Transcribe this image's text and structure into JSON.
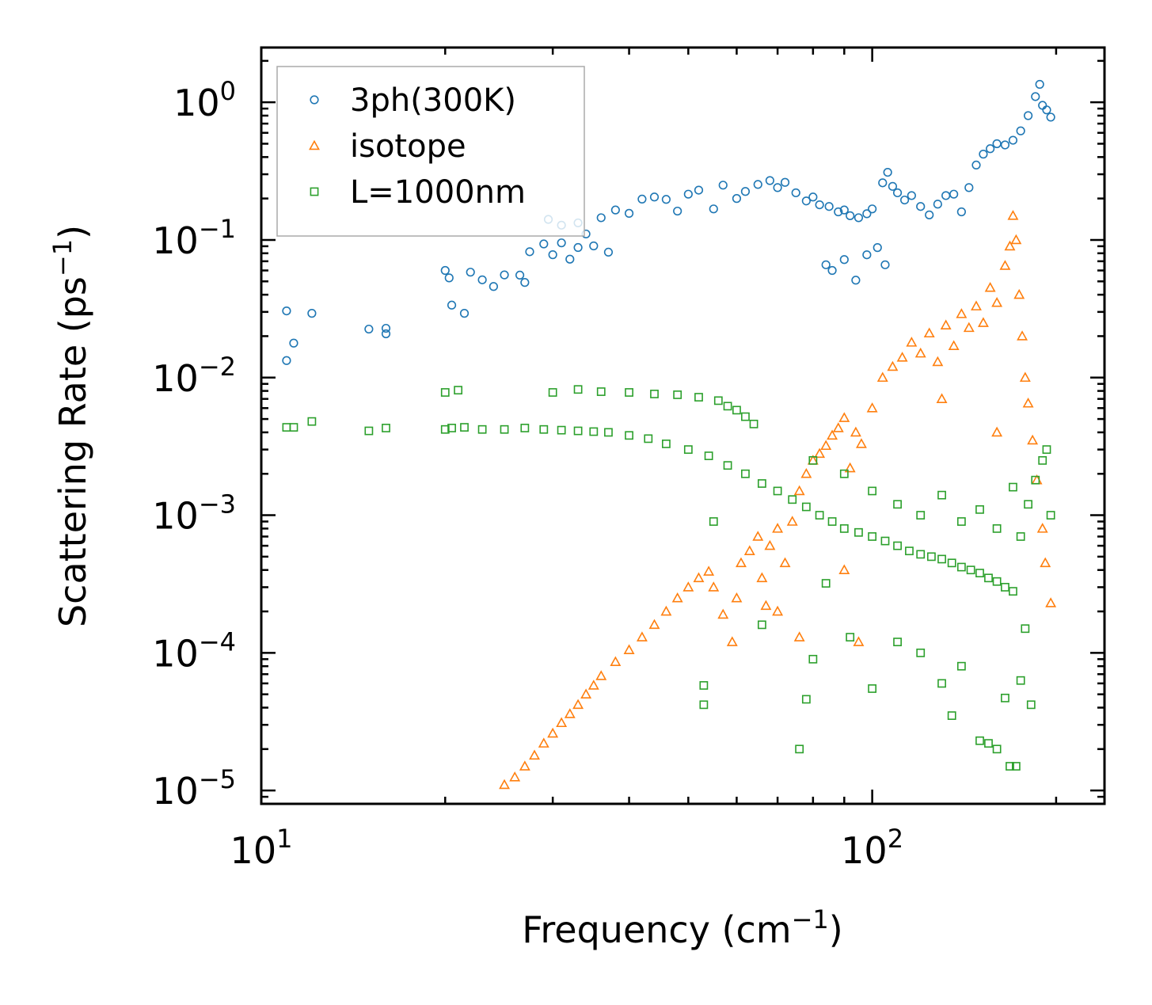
{
  "chart_data": {
    "type": "scatter",
    "xscale": "log",
    "yscale": "log",
    "xlim": [
      10,
      240
    ],
    "ylim": [
      8e-06,
      2.5
    ],
    "xlabel": "Frequency (cm",
    "xlabel_exp": "−1",
    "xlabel_end": ")",
    "ylabel": "Scattering Rate (ps",
    "ylabel_exp": "−1",
    "ylabel_end": ")",
    "xticks": [
      {
        "value": 10,
        "base": "10",
        "exp": "1"
      },
      {
        "value": 100,
        "base": "10",
        "exp": "2"
      }
    ],
    "yticks": [
      {
        "value": 1,
        "base": "10",
        "exp": "0"
      },
      {
        "value": 0.1,
        "base": "10",
        "exp": "−1"
      },
      {
        "value": 0.01,
        "base": "10",
        "exp": "−2"
      },
      {
        "value": 0.001,
        "base": "10",
        "exp": "−3"
      },
      {
        "value": 0.0001,
        "base": "10",
        "exp": "−4"
      },
      {
        "value": 1e-05,
        "base": "10",
        "exp": "−5"
      }
    ],
    "legend_position": "top-left",
    "series": [
      {
        "name": "3ph(300K)",
        "marker": "circle",
        "color": "#1f77b4",
        "points": [
          [
            11.0,
            0.0305
          ],
          [
            11.0,
            0.0133
          ],
          [
            11.3,
            0.0178
          ],
          [
            12.1,
            0.0293
          ],
          [
            15.0,
            0.0225
          ],
          [
            16.0,
            0.0208
          ],
          [
            16.0,
            0.0228
          ],
          [
            20.0,
            0.06
          ],
          [
            20.3,
            0.053
          ],
          [
            20.5,
            0.0336
          ],
          [
            21.5,
            0.0293
          ],
          [
            22.0,
            0.0583
          ],
          [
            23.0,
            0.0513
          ],
          [
            24.0,
            0.0459
          ],
          [
            25.0,
            0.0557
          ],
          [
            26.5,
            0.0555
          ],
          [
            27.0,
            0.0491
          ],
          [
            27.5,
            0.0821
          ],
          [
            29.0,
            0.0935
          ],
          [
            30.0,
            0.0781
          ],
          [
            31.0,
            0.0952
          ],
          [
            32.0,
            0.0725
          ],
          [
            33.0,
            0.0881
          ],
          [
            34.0,
            0.1105
          ],
          [
            35.0,
            0.0905
          ],
          [
            37.0,
            0.0815
          ],
          [
            29.5,
            0.141
          ],
          [
            31.0,
            0.128
          ],
          [
            33.0,
            0.133
          ],
          [
            36.0,
            0.145
          ],
          [
            38.0,
            0.165
          ],
          [
            40.0,
            0.156
          ],
          [
            42.0,
            0.198
          ],
          [
            44.0,
            0.205
          ],
          [
            46.0,
            0.197
          ],
          [
            48.0,
            0.162
          ],
          [
            50.0,
            0.215
          ],
          [
            52.0,
            0.23
          ],
          [
            55.0,
            0.168
          ],
          [
            57.0,
            0.25
          ],
          [
            60.0,
            0.2
          ],
          [
            62.0,
            0.225
          ],
          [
            65.0,
            0.253
          ],
          [
            68.0,
            0.27
          ],
          [
            70.0,
            0.24
          ],
          [
            72.0,
            0.262
          ],
          [
            75.0,
            0.22
          ],
          [
            78.0,
            0.192
          ],
          [
            80.0,
            0.205
          ],
          [
            82.0,
            0.18
          ],
          [
            85.0,
            0.175
          ],
          [
            88.0,
            0.16
          ],
          [
            90.0,
            0.165
          ],
          [
            92.0,
            0.15
          ],
          [
            95.0,
            0.145
          ],
          [
            98.0,
            0.155
          ],
          [
            100.0,
            0.168
          ],
          [
            104.0,
            0.26
          ],
          [
            106.0,
            0.31
          ],
          [
            108.0,
            0.245
          ],
          [
            110.0,
            0.22
          ],
          [
            113.0,
            0.195
          ],
          [
            116.0,
            0.21
          ],
          [
            120.0,
            0.175
          ],
          [
            124.0,
            0.152
          ],
          [
            128.0,
            0.182
          ],
          [
            132.0,
            0.21
          ],
          [
            136.0,
            0.215
          ],
          [
            140.0,
            0.16
          ],
          [
            144.0,
            0.24
          ],
          [
            148.0,
            0.35
          ],
          [
            152.0,
            0.42
          ],
          [
            156.0,
            0.46
          ],
          [
            160.0,
            0.5
          ],
          [
            165.0,
            0.49
          ],
          [
            170.0,
            0.53
          ],
          [
            175.0,
            0.62
          ],
          [
            180.0,
            0.8
          ],
          [
            185.0,
            1.1
          ],
          [
            188.0,
            1.35
          ],
          [
            190.0,
            0.95
          ],
          [
            193.0,
            0.88
          ],
          [
            196.0,
            0.78
          ],
          [
            84.0,
            0.066
          ],
          [
            86.0,
            0.06
          ],
          [
            90.0,
            0.072
          ],
          [
            94.0,
            0.051
          ],
          [
            98.0,
            0.078
          ],
          [
            102.0,
            0.088
          ],
          [
            105.0,
            0.066
          ]
        ]
      },
      {
        "name": "isotope",
        "marker": "triangle",
        "color": "#ff7f0e",
        "points": [
          [
            25.0,
            1.1e-05
          ],
          [
            26.0,
            1.25e-05
          ],
          [
            27.0,
            1.5e-05
          ],
          [
            28.0,
            1.8e-05
          ],
          [
            29.0,
            2.2e-05
          ],
          [
            30.0,
            2.6e-05
          ],
          [
            31.0,
            3.1e-05
          ],
          [
            32.0,
            3.6e-05
          ],
          [
            33.0,
            4.2e-05
          ],
          [
            34.0,
            5e-05
          ],
          [
            35.0,
            5.8e-05
          ],
          [
            36.0,
            6.8e-05
          ],
          [
            38.0,
            8.6e-05
          ],
          [
            40.0,
            0.000105
          ],
          [
            42.0,
            0.00013
          ],
          [
            44.0,
            0.00016
          ],
          [
            46.0,
            0.0002
          ],
          [
            48.0,
            0.00025
          ],
          [
            50.0,
            0.0003
          ],
          [
            52.0,
            0.00035
          ],
          [
            54.0,
            0.00039
          ],
          [
            55.0,
            0.0003
          ],
          [
            57.0,
            0.00019
          ],
          [
            59.0,
            0.00012
          ],
          [
            60.0,
            0.00025
          ],
          [
            61.0,
            0.00045
          ],
          [
            63.0,
            0.00055
          ],
          [
            65.0,
            0.0007
          ],
          [
            66.0,
            0.00035
          ],
          [
            67.0,
            0.00022
          ],
          [
            68.0,
            0.0006
          ],
          [
            70.0,
            0.0008
          ],
          [
            72.0,
            0.00045
          ],
          [
            74.0,
            0.0009
          ],
          [
            76.0,
            0.0015
          ],
          [
            78.0,
            0.002
          ],
          [
            80.0,
            0.0025
          ],
          [
            82.0,
            0.0028
          ],
          [
            84.0,
            0.0032
          ],
          [
            86.0,
            0.0038
          ],
          [
            88.0,
            0.0043
          ],
          [
            90.0,
            0.0051
          ],
          [
            92.0,
            0.0022
          ],
          [
            94.0,
            0.004
          ],
          [
            96.0,
            0.0033
          ],
          [
            100.0,
            0.006
          ],
          [
            104.0,
            0.01
          ],
          [
            108.0,
            0.012
          ],
          [
            112.0,
            0.014
          ],
          [
            116.0,
            0.018
          ],
          [
            120.0,
            0.015
          ],
          [
            124.0,
            0.021
          ],
          [
            128.0,
            0.013
          ],
          [
            132.0,
            0.024
          ],
          [
            136.0,
            0.017
          ],
          [
            140.0,
            0.029
          ],
          [
            144.0,
            0.023
          ],
          [
            148.0,
            0.033
          ],
          [
            152.0,
            0.025
          ],
          [
            156.0,
            0.045
          ],
          [
            160.0,
            0.035
          ],
          [
            165.0,
            0.065
          ],
          [
            168.0,
            0.09
          ],
          [
            170.0,
            0.15
          ],
          [
            172.0,
            0.1
          ],
          [
            174.0,
            0.04
          ],
          [
            176.0,
            0.02
          ],
          [
            178.0,
            0.01
          ],
          [
            180.0,
            0.0065
          ],
          [
            183.0,
            0.0035
          ],
          [
            186.0,
            0.0018
          ],
          [
            190.0,
            0.0008
          ],
          [
            192.0,
            0.00045
          ],
          [
            196.0,
            0.00023
          ],
          [
            76.0,
            0.00013
          ],
          [
            70.0,
            0.0002
          ],
          [
            90.0,
            0.0004
          ],
          [
            95.0,
            0.00012
          ],
          [
            130.0,
            0.007
          ],
          [
            160.0,
            0.004
          ]
        ]
      },
      {
        "name": "L=1000nm",
        "marker": "square",
        "color": "#2ca02c",
        "points": [
          [
            11.0,
            0.00435
          ],
          [
            11.3,
            0.00435
          ],
          [
            12.1,
            0.0048
          ],
          [
            15.0,
            0.0041
          ],
          [
            16.0,
            0.0043
          ],
          [
            20.0,
            0.0042
          ],
          [
            20.5,
            0.0043
          ],
          [
            21.5,
            0.00435
          ],
          [
            23.0,
            0.0042
          ],
          [
            25.0,
            0.0042
          ],
          [
            27.0,
            0.0043
          ],
          [
            29.0,
            0.0042
          ],
          [
            31.0,
            0.00415
          ],
          [
            33.0,
            0.0041
          ],
          [
            35.0,
            0.00405
          ],
          [
            37.0,
            0.004
          ],
          [
            40.0,
            0.0038
          ],
          [
            43.0,
            0.0036
          ],
          [
            46.0,
            0.0033
          ],
          [
            50.0,
            0.003
          ],
          [
            54.0,
            0.0027
          ],
          [
            58.0,
            0.0023
          ],
          [
            62.0,
            0.002
          ],
          [
            66.0,
            0.0017
          ],
          [
            70.0,
            0.0015
          ],
          [
            74.0,
            0.0013
          ],
          [
            78.0,
            0.00115
          ],
          [
            82.0,
            0.001
          ],
          [
            86.0,
            0.0009
          ],
          [
            90.0,
            0.0008
          ],
          [
            95.0,
            0.00075
          ],
          [
            100.0,
            0.0007
          ],
          [
            105.0,
            0.00065
          ],
          [
            110.0,
            0.0006
          ],
          [
            115.0,
            0.00055
          ],
          [
            120.0,
            0.00052
          ],
          [
            125.0,
            0.0005
          ],
          [
            130.0,
            0.00048
          ],
          [
            135.0,
            0.00045
          ],
          [
            140.0,
            0.00042
          ],
          [
            145.0,
            0.0004
          ],
          [
            150.0,
            0.00038
          ],
          [
            155.0,
            0.00035
          ],
          [
            160.0,
            0.00033
          ],
          [
            165.0,
            0.0003
          ],
          [
            170.0,
            0.00028
          ],
          [
            175.0,
            0.0007
          ],
          [
            180.0,
            0.0012
          ],
          [
            185.0,
            0.0018
          ],
          [
            190.0,
            0.0025
          ],
          [
            193.0,
            0.003
          ],
          [
            196.0,
            0.001
          ],
          [
            20.0,
            0.0078
          ],
          [
            21.0,
            0.0081
          ],
          [
            30.0,
            0.0078
          ],
          [
            33.0,
            0.0082
          ],
          [
            36.0,
            0.0079
          ],
          [
            40.0,
            0.0078
          ],
          [
            44.0,
            0.0076
          ],
          [
            48.0,
            0.0075
          ],
          [
            52.0,
            0.0072
          ],
          [
            56.0,
            0.0068
          ],
          [
            58.0,
            0.0062
          ],
          [
            60.0,
            0.0058
          ],
          [
            62.0,
            0.0052
          ],
          [
            64.0,
            0.0046
          ],
          [
            80.0,
            0.0025
          ],
          [
            90.0,
            0.002
          ],
          [
            100.0,
            0.0015
          ],
          [
            110.0,
            0.0012
          ],
          [
            120.0,
            0.001
          ],
          [
            130.0,
            0.0014
          ],
          [
            140.0,
            0.0009
          ],
          [
            150.0,
            0.0011
          ],
          [
            160.0,
            0.0008
          ],
          [
            170.0,
            0.0016
          ],
          [
            53.0,
            5.8e-05
          ],
          [
            53.0,
            4.2e-05
          ],
          [
            55.0,
            0.0009
          ],
          [
            66.0,
            0.00016
          ],
          [
            76.0,
            2e-05
          ],
          [
            78.0,
            4.6e-05
          ],
          [
            80.0,
            9e-05
          ],
          [
            84.0,
            0.00032
          ],
          [
            92.0,
            0.00013
          ],
          [
            100.0,
            5.5e-05
          ],
          [
            110.0,
            0.00012
          ],
          [
            120.0,
            0.0001
          ],
          [
            130.0,
            6e-05
          ],
          [
            135.0,
            3.5e-05
          ],
          [
            140.0,
            8e-05
          ],
          [
            150.0,
            2.3e-05
          ],
          [
            155.0,
            2.2e-05
          ],
          [
            160.0,
            2e-05
          ],
          [
            165.0,
            4.7e-05
          ],
          [
            168.0,
            1.5e-05
          ],
          [
            172.0,
            1.5e-05
          ],
          [
            175.0,
            6.3e-05
          ],
          [
            178.0,
            0.00015
          ],
          [
            182.0,
            4.2e-05
          ]
        ]
      }
    ]
  }
}
